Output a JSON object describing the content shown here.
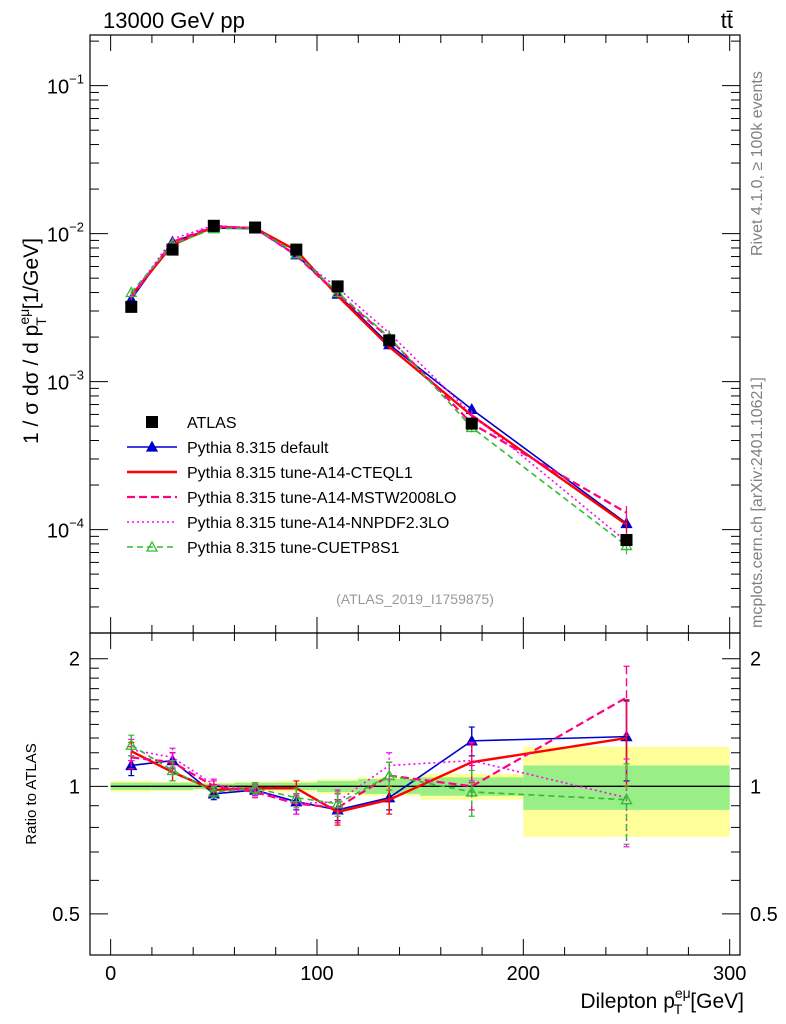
{
  "header": {
    "energy_label": "13000 GeV pp",
    "process_label": "tt̄"
  },
  "side_text": {
    "rivet": "Rivet 4.1.0, ≥ 100k events",
    "source": "mcplots.cern.ch [arXiv:2401.10621]"
  },
  "analysis_label": "(ATLAS_2019_I1759875)",
  "chart_data": {
    "type": "line",
    "title": "13000 GeV pp",
    "xlabel": "Dilepton p_T^eμ [GeV]",
    "ylabel_main": "1 / σ dσ / d p_T^eμ [1/GeV]",
    "ylabel_ratio": "Ratio to ATLAS",
    "xlim": [
      -10,
      305
    ],
    "ylim_main": [
      2e-05,
      0.22
    ],
    "ylim_ratio": [
      0.4,
      2.3
    ],
    "y_scale_main": "log",
    "y_scale_ratio": "log",
    "x_ticks": [
      "0",
      "100",
      "200",
      "300"
    ],
    "y_ticks_main": [
      "10^-4",
      "10^-3",
      "10^-2",
      "10^-1"
    ],
    "y_ticks_ratio": [
      "0.5",
      "1",
      "2"
    ],
    "legend_position": "lower-left",
    "bins": [
      [
        0,
        20
      ],
      [
        20,
        40
      ],
      [
        40,
        60
      ],
      [
        60,
        80
      ],
      [
        80,
        100
      ],
      [
        100,
        120
      ],
      [
        120,
        150
      ],
      [
        150,
        200
      ],
      [
        200,
        300
      ]
    ],
    "x": [
      10,
      30,
      50,
      70,
      90,
      110,
      135,
      175,
      250
    ],
    "data": {
      "name": "ATLAS",
      "values": [
        0.0032,
        0.0078,
        0.0113,
        0.011,
        0.0078,
        0.0044,
        0.0019,
        0.00052,
        8.5e-05
      ],
      "rel_err_inner": [
        0.02,
        0.02,
        0.015,
        0.02,
        0.02,
        0.03,
        0.04,
        0.05,
        0.12
      ],
      "rel_err_outer": [
        0.03,
        0.025,
        0.02,
        0.025,
        0.03,
        0.04,
        0.05,
        0.07,
        0.24
      ]
    },
    "series": [
      {
        "name": "Pythia 8.315 default",
        "color": "#0000cc",
        "dash": "",
        "marker": "filled-triangle",
        "values": [
          0.0036,
          0.0088,
          0.0109,
          0.0108,
          0.0072,
          0.0039,
          0.00178,
          0.00065,
          0.00011
        ],
        "ratio": [
          1.12,
          1.15,
          0.96,
          0.98,
          0.92,
          0.88,
          0.94,
          1.28,
          1.31
        ],
        "ratio_err": [
          0.06,
          0.05,
          0.03,
          0.03,
          0.04,
          0.05,
          0.06,
          0.1,
          0.28
        ]
      },
      {
        "name": "Pythia 8.315 tune-A14-CTEQL1",
        "color": "#ff0000",
        "dash": "",
        "marker": "none",
        "values": [
          0.0038,
          0.0084,
          0.0111,
          0.0109,
          0.0077,
          0.0038,
          0.00172,
          0.00059,
          0.000108
        ],
        "ratio": [
          1.21,
          1.08,
          0.98,
          0.99,
          0.99,
          0.87,
          0.93,
          1.14,
          1.3
        ],
        "ratio_err": [
          0.06,
          0.05,
          0.03,
          0.03,
          0.04,
          0.06,
          0.07,
          0.12,
          0.3
        ]
      },
      {
        "name": "Pythia 8.315 tune-A14-MSTW2008LO",
        "color": "#ff0080",
        "dash": "8,4",
        "marker": "none",
        "values": [
          0.0037,
          0.0088,
          0.0112,
          0.0109,
          0.0071,
          0.0039,
          0.00197,
          0.00052,
          0.00013
        ],
        "ratio": [
          1.17,
          1.14,
          1.0,
          0.97,
          0.91,
          0.89,
          1.06,
          1.0,
          1.62
        ],
        "ratio_err": [
          0.07,
          0.06,
          0.03,
          0.03,
          0.05,
          0.07,
          0.08,
          0.12,
          0.3
        ]
      },
      {
        "name": "Pythia 8.315 tune-A14-NNPDF2.3LO",
        "color": "#ff00ff",
        "dash": "2,3",
        "marker": "none",
        "values": [
          0.0038,
          0.0092,
          0.0114,
          0.0108,
          0.0071,
          0.0043,
          0.00213,
          0.0006,
          8.3e-05
        ],
        "ratio": [
          1.22,
          1.17,
          1.01,
          0.98,
          0.91,
          0.92,
          1.12,
          1.15,
          0.94
        ],
        "ratio_err": [
          0.07,
          0.06,
          0.03,
          0.03,
          0.05,
          0.06,
          0.08,
          0.12,
          0.22
        ]
      },
      {
        "name": "Pythia 8.315 tune-CUETP8S1",
        "color": "#33bb33",
        "dash": "6,4",
        "marker": "open-triangle",
        "values": [
          0.004,
          0.0085,
          0.0108,
          0.0109,
          0.0073,
          0.004,
          0.002,
          0.00049,
          7.8e-05
        ],
        "ratio": [
          1.25,
          1.09,
          0.97,
          0.99,
          0.94,
          0.91,
          1.06,
          0.97,
          0.93
        ],
        "ratio_err": [
          0.07,
          0.06,
          0.03,
          0.03,
          0.05,
          0.06,
          0.08,
          0.12,
          0.2
        ]
      }
    ]
  }
}
